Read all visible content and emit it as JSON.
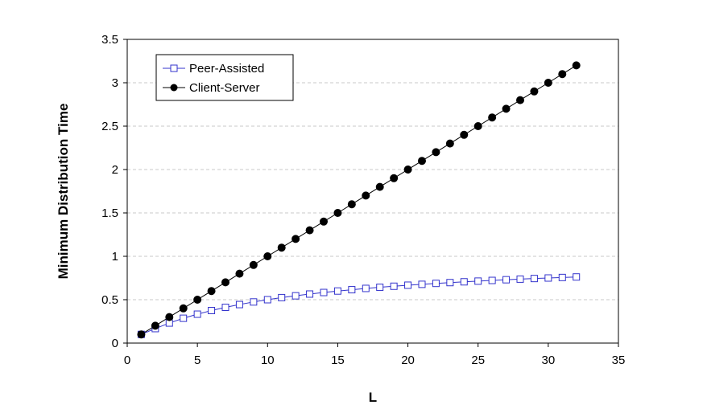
{
  "chart_data": {
    "type": "line",
    "title": "",
    "xlabel": "L",
    "ylabel": "Minimum Distribution Time",
    "xlim": [
      0,
      35
    ],
    "ylim": [
      0,
      3.5
    ],
    "xticks": [
      0,
      5,
      10,
      15,
      20,
      25,
      30,
      35
    ],
    "yticks": [
      0,
      0.5,
      1,
      1.5,
      2,
      2.5,
      3,
      3.5
    ],
    "ytick_labels": [
      "0",
      "0.5",
      "1",
      "1.5",
      "2",
      "2.5",
      "3",
      "3.5"
    ],
    "grid": "horizontal dashed",
    "legend_position": "top-left",
    "x": [
      1,
      2,
      3,
      4,
      5,
      6,
      7,
      8,
      9,
      10,
      11,
      12,
      13,
      14,
      15,
      16,
      17,
      18,
      19,
      20,
      21,
      22,
      23,
      24,
      25,
      26,
      27,
      28,
      29,
      30,
      31,
      32
    ],
    "series": [
      {
        "name": "Peer-Assisted",
        "marker": "open-square",
        "color": "#3333cc",
        "values": [
          0.1,
          0.167,
          0.231,
          0.286,
          0.333,
          0.375,
          0.412,
          0.444,
          0.474,
          0.5,
          0.524,
          0.545,
          0.565,
          0.583,
          0.6,
          0.615,
          0.63,
          0.643,
          0.655,
          0.667,
          0.677,
          0.688,
          0.697,
          0.706,
          0.714,
          0.722,
          0.73,
          0.737,
          0.744,
          0.75,
          0.756,
          0.762
        ]
      },
      {
        "name": "Client-Server",
        "marker": "filled-circle",
        "color": "#000000",
        "values": [
          0.1,
          0.2,
          0.3,
          0.4,
          0.5,
          0.6,
          0.7,
          0.8,
          0.9,
          1.0,
          1.1,
          1.2,
          1.3,
          1.4,
          1.5,
          1.6,
          1.7,
          1.8,
          1.9,
          2.0,
          2.1,
          2.2,
          2.3,
          2.4,
          2.5,
          2.6,
          2.7,
          2.8,
          2.9,
          3.0,
          3.1,
          3.2
        ]
      }
    ]
  }
}
